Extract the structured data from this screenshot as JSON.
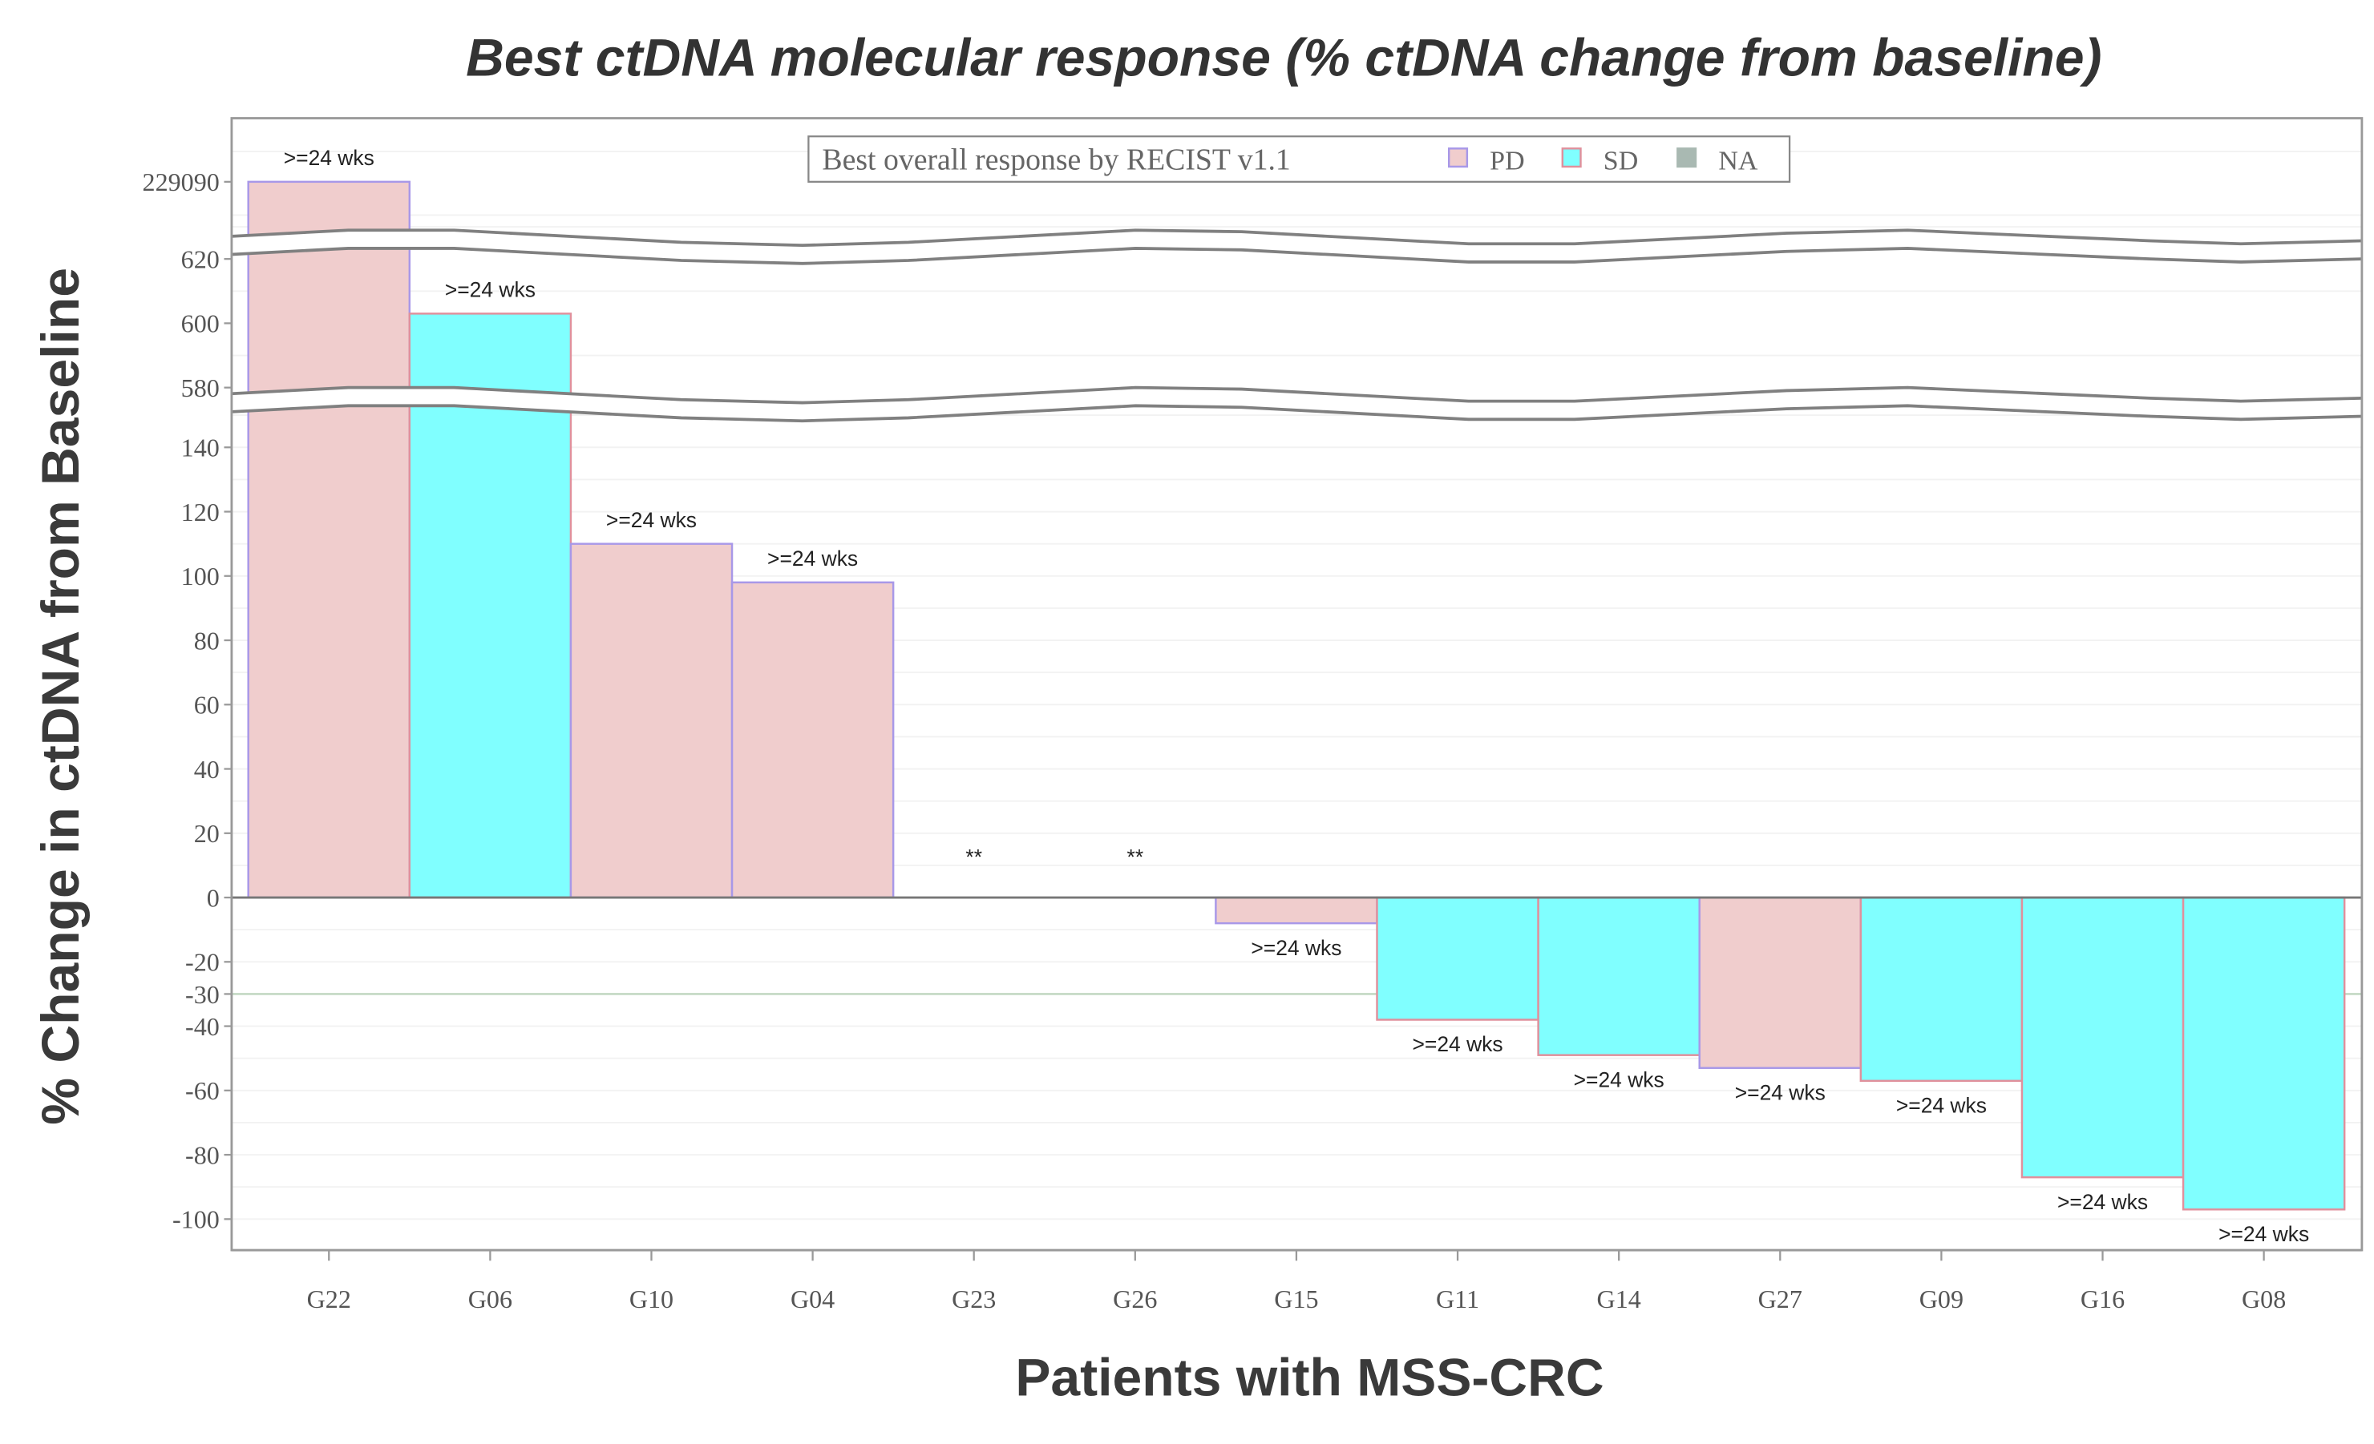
{
  "chart_data": {
    "type": "bar",
    "title": "Best ctDNA molecular response (% ctDNA change from baseline)",
    "xlabel": "Patients with MSS-CRC",
    "ylabel": "% Change in ctDNA from Baseline",
    "categories": [
      "G22",
      "G06",
      "G10",
      "G04",
      "G23",
      "G26",
      "G15",
      "G11",
      "G14",
      "G27",
      "G09",
      "G16",
      "G08"
    ],
    "values": [
      229090,
      603,
      110,
      98,
      0,
      0,
      -8,
      -38,
      -49,
      -53,
      -57,
      -87,
      -97
    ],
    "response": [
      "PD",
      "SD",
      "PD",
      "PD",
      "NA",
      "NA",
      "PD",
      "SD",
      "SD",
      "PD",
      "SD",
      "SD",
      "SD"
    ],
    "bar_labels": [
      ">=24 wks",
      ">=24 wks",
      ">=24 wks",
      ">=24 wks",
      "**",
      "**",
      ">=24 wks",
      ">=24 wks",
      ">=24 wks",
      ">=24 wks",
      ">=24 wks",
      ">=24 wks",
      ">=24 wks"
    ],
    "y_axis_breaks": [
      [
        150,
        575
      ],
      [
        625,
        229085
      ]
    ],
    "yticks": [
      -100,
      -80,
      -60,
      -40,
      -30,
      -20,
      0,
      20,
      40,
      60,
      80,
      100,
      120,
      140,
      580,
      600,
      620,
      229090
    ],
    "reference_line": -30,
    "grid": true,
    "legend": {
      "title": "Best overall response by RECIST v1.1",
      "placement": "top-center",
      "entries": [
        {
          "name": "PD",
          "fill": "#f0cdcd",
          "stroke": "#a898e8"
        },
        {
          "name": "SD",
          "fill": "#80ffff",
          "stroke": "#e0909c"
        },
        {
          "name": "NA",
          "fill": "#a9b9b2",
          "stroke": "#a9b9b2"
        }
      ]
    },
    "colors": {
      "PD": "#f0cdcd",
      "SD": "#80ffff",
      "NA": "#a9b9b2",
      "PD_border": "#a898e8",
      "SD_border": "#e0909c",
      "reference_line": "#c8dcc8"
    }
  }
}
